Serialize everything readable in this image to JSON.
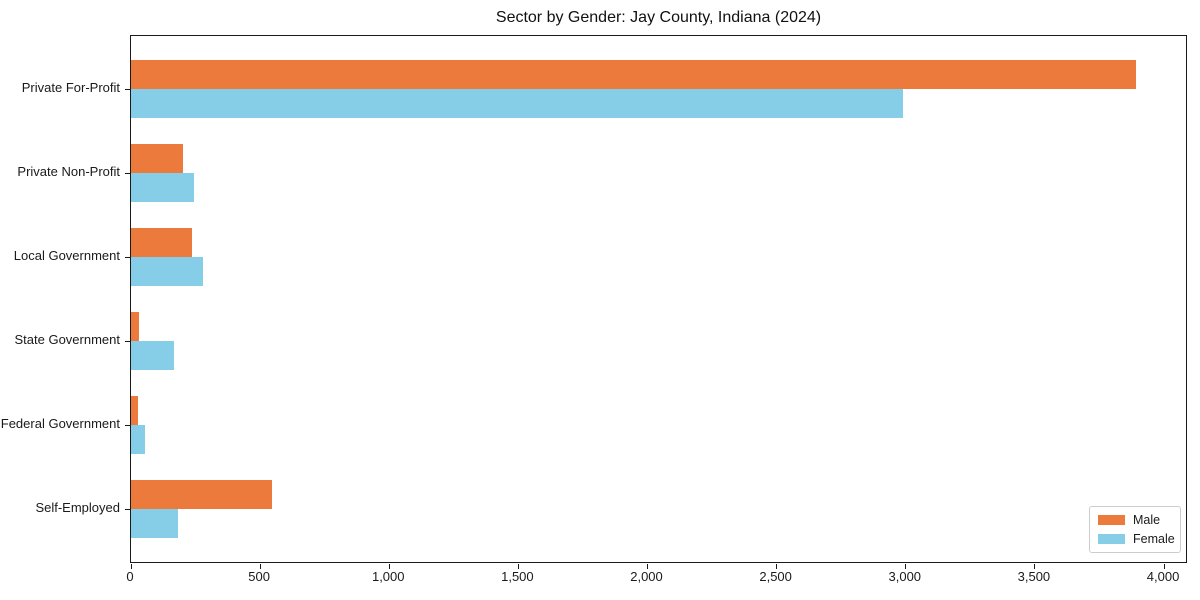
{
  "figure": {
    "title": "Sector by Gender: Jay County, Indiana (2024)"
  },
  "chart_data": {
    "type": "bar",
    "orientation": "horizontal",
    "title": "Sector by Gender: Jay County, Indiana (2024)",
    "categories": [
      "Private For-Profit",
      "Private Non-Profit",
      "Local Government",
      "State Government",
      "Federal Government",
      "Self-Employed"
    ],
    "series": [
      {
        "name": "Male",
        "color": "#EB7A3C",
        "values": [
          3890,
          200,
          235,
          30,
          25,
          545
        ]
      },
      {
        "name": "Female",
        "color": "#86CEE8",
        "values": [
          2990,
          245,
          280,
          165,
          55,
          180
        ]
      }
    ],
    "xlabel": "",
    "ylabel": "",
    "xlim": [
      0,
      4085
    ],
    "xticks": [
      0,
      500,
      1000,
      1500,
      2000,
      2500,
      3000,
      3500,
      4000
    ],
    "xtick_labels": [
      "0",
      "500",
      "1,000",
      "1,500",
      "2,000",
      "2,500",
      "3,000",
      "3,500",
      "4,000"
    ],
    "grid": false,
    "legend": {
      "position": "lower right",
      "entries": [
        "Male",
        "Female"
      ]
    }
  }
}
